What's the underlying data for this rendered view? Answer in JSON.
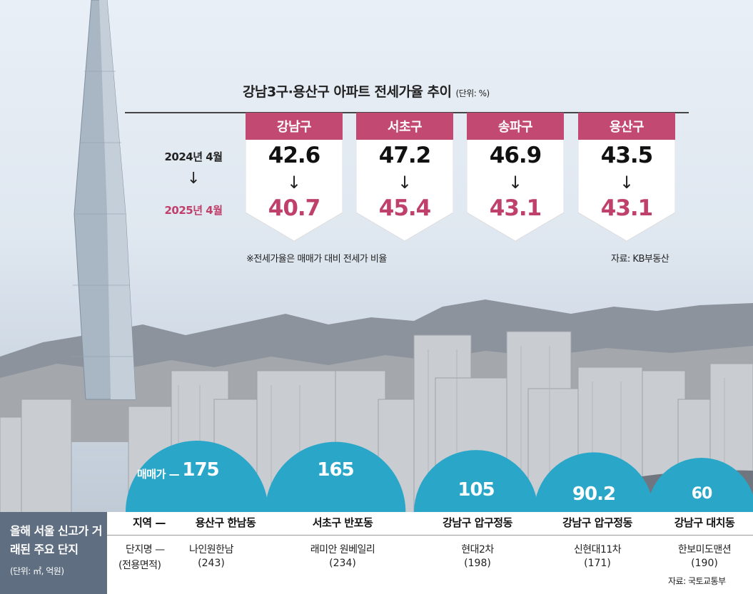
{
  "chart_data": [
    {
      "type": "table",
      "title": "강남3구·용산구 아파트 전세가율 추이",
      "unit": "(단위: %)",
      "row_labels": [
        "2024년 4월",
        "2025년 4월"
      ],
      "arrow": "↓",
      "categories": [
        "강남구",
        "서초구",
        "송파구",
        "용산구"
      ],
      "series": [
        {
          "name": "2024년 4월",
          "values": [
            42.6,
            47.2,
            46.9,
            43.5
          ]
        },
        {
          "name": "2025년 4월",
          "values": [
            40.7,
            45.4,
            43.1,
            43.1
          ]
        }
      ],
      "note": "※전세가율은 매매가 대비 전세가 비율",
      "source": "자료: KB부동산",
      "colors": {
        "card_header": "#c24a72",
        "highlight": "#c0406c"
      }
    },
    {
      "type": "bar",
      "title": "올해 서울 신고가 거래된 주요 단지",
      "unit": "(단위: ㎡, 억원)",
      "value_prefix": "매매가 —",
      "row_labels": {
        "region": "지역 —",
        "complex": "단지명 —",
        "area": "(전용면적)"
      },
      "points": [
        {
          "region": "용산구 한남동",
          "complex": "나인원한남",
          "area": "(243)",
          "value": 175
        },
        {
          "region": "서초구 반포동",
          "complex": "래미안 원베일리",
          "area": "(234)",
          "value": 165
        },
        {
          "region": "강남구 압구정동",
          "complex": "현대2차",
          "area": "(198)",
          "value": 105
        },
        {
          "region": "강남구 압구정동",
          "complex": "신현대11차",
          "area": "(171)",
          "value": 90.2
        },
        {
          "region": "강남구 대치동",
          "complex": "한보미도맨션",
          "area": "(190)",
          "value": 60
        }
      ],
      "source": "자료: 국토교통부",
      "colors": {
        "bubble": "#2aa7c8",
        "label_panel": "#5f6e80"
      }
    }
  ]
}
